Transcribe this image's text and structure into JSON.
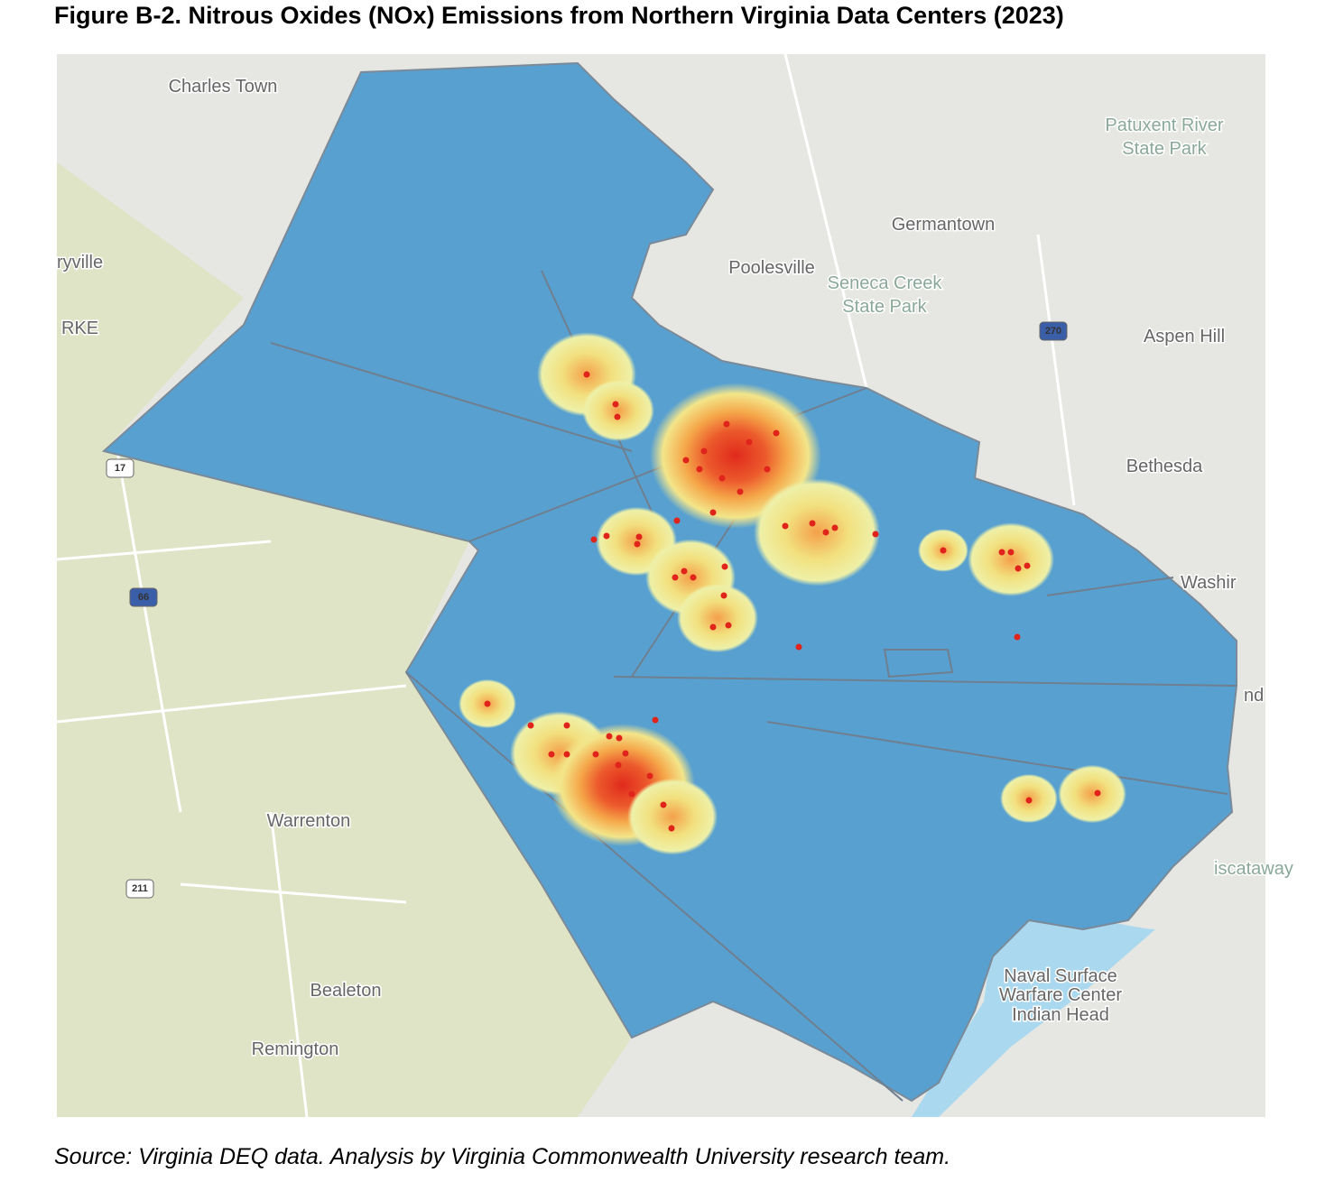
{
  "title": "Figure B-2. Nitrous Oxides (NOx) Emissions from Northern Virginia Data Centers (2023)",
  "source": "Source: Virginia DEQ data. Analysis by Virginia Commonwealth University research team.",
  "map_labels": [
    "Charles Town",
    "ryville",
    "RKE",
    "Patuxent River",
    "State Park",
    "Germantown",
    "Poolesville",
    "Seneca Creek",
    "State Park",
    "Aspen Hill",
    "Bethesda",
    "Washir",
    "nd",
    "iscataway",
    "Warrenton",
    "Bealeton",
    "Remington",
    "Naval Surface",
    "Warfare Center",
    "Indian Head"
  ],
  "road_shields": [
    "17",
    "66",
    "211",
    "270"
  ]
}
